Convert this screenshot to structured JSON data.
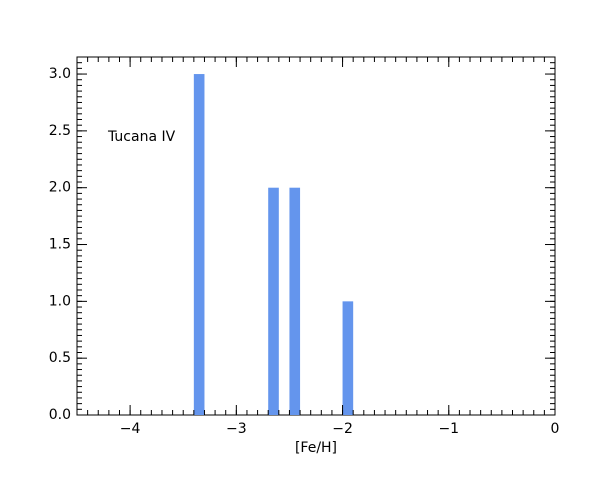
{
  "chart_data": {
    "type": "histogram",
    "annotation": "Tucana IV",
    "x_label": "[Fe/H]",
    "bins": [
      -3.4,
      -3.3,
      -3.2,
      -3.1,
      -3.0,
      -2.9,
      -2.8,
      -2.7,
      -2.6,
      -2.5,
      -2.4,
      -2.3,
      -2.2,
      -2.1,
      -2.0,
      -1.9
    ],
    "values": [
      3,
      0,
      0,
      0,
      0,
      0,
      0,
      2,
      0,
      2,
      0,
      0,
      0,
      0,
      1
    ],
    "color": "#6495ed",
    "xlim": [
      -4.5,
      0
    ],
    "xticks": [
      {
        "value": -4,
        "label": "−4"
      },
      {
        "value": -3,
        "label": "−3"
      },
      {
        "value": -2,
        "label": "−2"
      },
      {
        "value": -1,
        "label": "−1"
      },
      0
    ],
    "ylim": [
      0,
      3.15
    ],
    "yticks": [
      {
        "value": 0,
        "label": "0.0"
      },
      0.5,
      {
        "value": 1,
        "label": "1.0"
      },
      1.5,
      {
        "value": 2,
        "label": "2.0"
      },
      2.5,
      {
        "value": 3,
        "label": "3.0"
      }
    ]
  }
}
